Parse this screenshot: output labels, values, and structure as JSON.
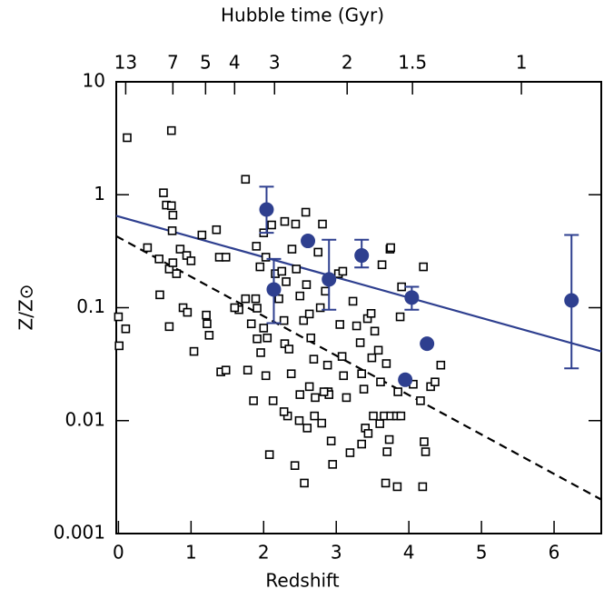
{
  "chart_data": {
    "type": "scatter",
    "x_label": "Redshift",
    "y_label": "Z/Z⊙",
    "x2_label": "Hubble time (Gyr)",
    "xlim": [
      -0.03,
      6.65
    ],
    "ylim": [
      0.001,
      10
    ],
    "ylog": true,
    "xticks": [
      0,
      1,
      2,
      3,
      4,
      5,
      6
    ],
    "yticks": [
      10,
      1,
      0.1,
      0.01,
      0.001
    ],
    "x2ticks": [
      {
        "value": 0.1,
        "label": "13"
      },
      {
        "value": 0.75,
        "label": "7"
      },
      {
        "value": 1.2,
        "label": "5"
      },
      {
        "value": 1.6,
        "label": "4"
      },
      {
        "value": 2.15,
        "label": "3"
      },
      {
        "value": 3.15,
        "label": "2"
      },
      {
        "value": 4.05,
        "label": "1.5"
      },
      {
        "value": 5.55,
        "label": "1"
      }
    ],
    "lines": [
      {
        "x": [
          -0.03,
          6.65
        ],
        "values": [
          0.65,
          0.041
        ],
        "color": "#2e3f8f",
        "dashed": false
      },
      {
        "x": [
          -0.03,
          6.65
        ],
        "values": [
          0.43,
          0.002
        ],
        "color": "#000000",
        "dashed": true
      }
    ],
    "series": [
      {
        "marker": "open-square",
        "color": "#000000",
        "x": [
          0.12,
          0.73,
          0.0,
          0.1,
          0.01,
          0.4,
          0.62,
          0.66,
          0.73,
          0.75,
          0.74,
          0.56,
          0.57,
          0.7,
          0.75,
          0.8,
          0.85,
          0.94,
          1.0,
          0.89,
          0.95,
          0.7,
          1.04,
          1.15,
          1.21,
          1.22,
          1.25,
          1.35,
          1.39,
          1.48,
          1.41,
          1.48,
          1.66,
          1.75,
          1.75,
          1.78,
          1.86,
          1.91,
          1.9,
          1.95,
          2.0,
          2.03,
          2.0,
          2.05,
          2.08,
          2.03,
          2.11,
          2.16,
          2.21,
          2.29,
          2.25,
          2.31,
          2.28,
          2.29,
          2.35,
          2.38,
          2.39,
          2.44,
          2.45,
          2.43,
          2.5,
          2.55,
          2.59,
          2.58,
          2.63,
          2.65,
          2.69,
          2.63,
          2.7,
          2.75,
          2.78,
          2.81,
          2.85,
          2.88,
          2.89,
          2.93,
          2.95,
          3.03,
          3.05,
          3.08,
          3.1,
          3.09,
          3.14,
          3.19,
          3.23,
          3.28,
          3.33,
          3.35,
          3.38,
          3.4,
          3.43,
          3.48,
          3.49,
          3.53,
          3.58,
          3.61,
          3.63,
          3.69,
          3.74,
          3.75,
          3.73,
          3.7,
          3.68,
          3.84,
          3.66,
          3.75,
          3.83,
          3.89,
          3.85,
          3.88,
          3.9,
          4.06,
          4.16,
          4.2,
          4.21,
          4.23,
          4.19,
          4.3,
          4.36,
          4.44,
          1.89,
          1.83,
          1.96,
          1.91,
          1.6,
          2.13,
          2.33,
          2.5,
          2.6,
          2.8,
          2.71,
          2.9,
          2.83,
          2.56,
          3.6,
          3.51,
          3.44,
          3.35,
          2.28,
          2.49
        ],
        "values": [
          3.2,
          3.7,
          0.083,
          0.065,
          0.046,
          0.34,
          1.04,
          0.81,
          0.8,
          0.66,
          0.48,
          0.27,
          0.13,
          0.22,
          0.25,
          0.2,
          0.33,
          0.29,
          0.26,
          0.1,
          0.091,
          0.068,
          0.041,
          0.44,
          0.086,
          0.072,
          0.057,
          0.49,
          0.28,
          0.28,
          0.027,
          0.028,
          0.096,
          0.12,
          1.37,
          0.028,
          0.015,
          0.099,
          0.35,
          0.23,
          0.46,
          0.28,
          0.066,
          0.054,
          0.005,
          0.025,
          0.54,
          0.2,
          0.12,
          0.58,
          0.21,
          0.17,
          0.077,
          0.048,
          0.043,
          0.026,
          0.33,
          0.55,
          0.22,
          0.004,
          0.127,
          0.077,
          0.16,
          0.7,
          0.088,
          0.054,
          0.035,
          0.02,
          0.011,
          0.31,
          0.1,
          0.55,
          0.14,
          0.031,
          0.018,
          0.0066,
          0.0041,
          0.2,
          0.071,
          0.037,
          0.025,
          0.21,
          0.016,
          0.0052,
          0.114,
          0.069,
          0.049,
          0.026,
          0.019,
          0.0086,
          0.08,
          0.089,
          0.036,
          0.062,
          0.042,
          0.022,
          0.24,
          0.032,
          0.33,
          0.34,
          0.0068,
          0.0053,
          0.0028,
          0.0026,
          0.011,
          0.011,
          0.011,
          0.011,
          0.018,
          0.083,
          0.153,
          0.021,
          0.015,
          0.23,
          0.0065,
          0.0053,
          0.0026,
          0.02,
          0.022,
          0.031,
          0.12,
          0.072,
          0.04,
          0.053,
          0.1,
          0.015,
          0.011,
          0.017,
          0.0086,
          0.0095,
          0.016,
          0.017,
          0.018,
          0.0028,
          0.0094,
          0.011,
          0.0077,
          0.0062,
          0.012,
          0.01
        ]
      },
      {
        "marker": "filled-circle",
        "color": "#2e3f8f",
        "x": [
          2.04,
          2.14,
          2.61,
          2.9,
          3.35,
          4.04,
          3.95,
          4.25,
          6.24
        ],
        "values": [
          0.74,
          0.145,
          0.39,
          0.178,
          0.29,
          0.123,
          0.023,
          0.048,
          0.116
        ],
        "y_low": [
          0.46,
          0.073,
          null,
          0.096,
          0.227,
          0.096,
          null,
          null,
          0.029
        ],
        "y_high": [
          1.18,
          0.27,
          null,
          0.4,
          0.4,
          0.153,
          null,
          null,
          0.44
        ]
      }
    ]
  }
}
